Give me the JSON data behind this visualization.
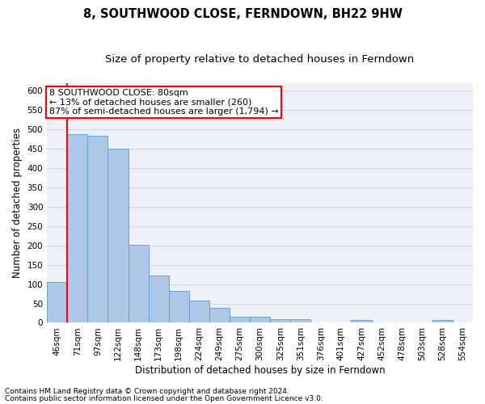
{
  "title": "8, SOUTHWOOD CLOSE, FERNDOWN, BH22 9HW",
  "subtitle": "Size of property relative to detached houses in Ferndown",
  "xlabel_bottom": "Distribution of detached houses by size in Ferndown",
  "ylabel": "Number of detached properties",
  "footer_line1": "Contains HM Land Registry data © Crown copyright and database right 2024.",
  "footer_line2": "Contains public sector information licensed under the Open Government Licence v3.0.",
  "categories": [
    "46sqm",
    "71sqm",
    "97sqm",
    "122sqm",
    "148sqm",
    "173sqm",
    "198sqm",
    "224sqm",
    "249sqm",
    "275sqm",
    "300sqm",
    "325sqm",
    "351sqm",
    "376sqm",
    "401sqm",
    "427sqm",
    "452sqm",
    "478sqm",
    "503sqm",
    "528sqm",
    "554sqm"
  ],
  "values": [
    105,
    487,
    483,
    450,
    202,
    122,
    83,
    57,
    38,
    15,
    15,
    10,
    10,
    0,
    0,
    7,
    0,
    0,
    0,
    7,
    0
  ],
  "bar_color": "#aec6e8",
  "bar_edge_color": "#5b9bd5",
  "annotation_line1": "8 SOUTHWOOD CLOSE: 80sqm",
  "annotation_line2": "← 13% of detached houses are smaller (260)",
  "annotation_line3": "87% of semi-detached houses are larger (1,794) →",
  "annotation_box_color": "white",
  "annotation_box_edge_color": "red",
  "property_line_color": "red",
  "ylim": [
    0,
    620
  ],
  "yticks": [
    0,
    50,
    100,
    150,
    200,
    250,
    300,
    350,
    400,
    450,
    500,
    550,
    600
  ],
  "grid_color": "#d0d8e8",
  "background_color": "#eef2f8",
  "title_fontsize": 10.5,
  "subtitle_fontsize": 9.5,
  "ylabel_fontsize": 8.5,
  "xlabel_fontsize": 8.5,
  "tick_fontsize": 7.5,
  "annotation_fontsize": 8,
  "footer_fontsize": 6.5
}
